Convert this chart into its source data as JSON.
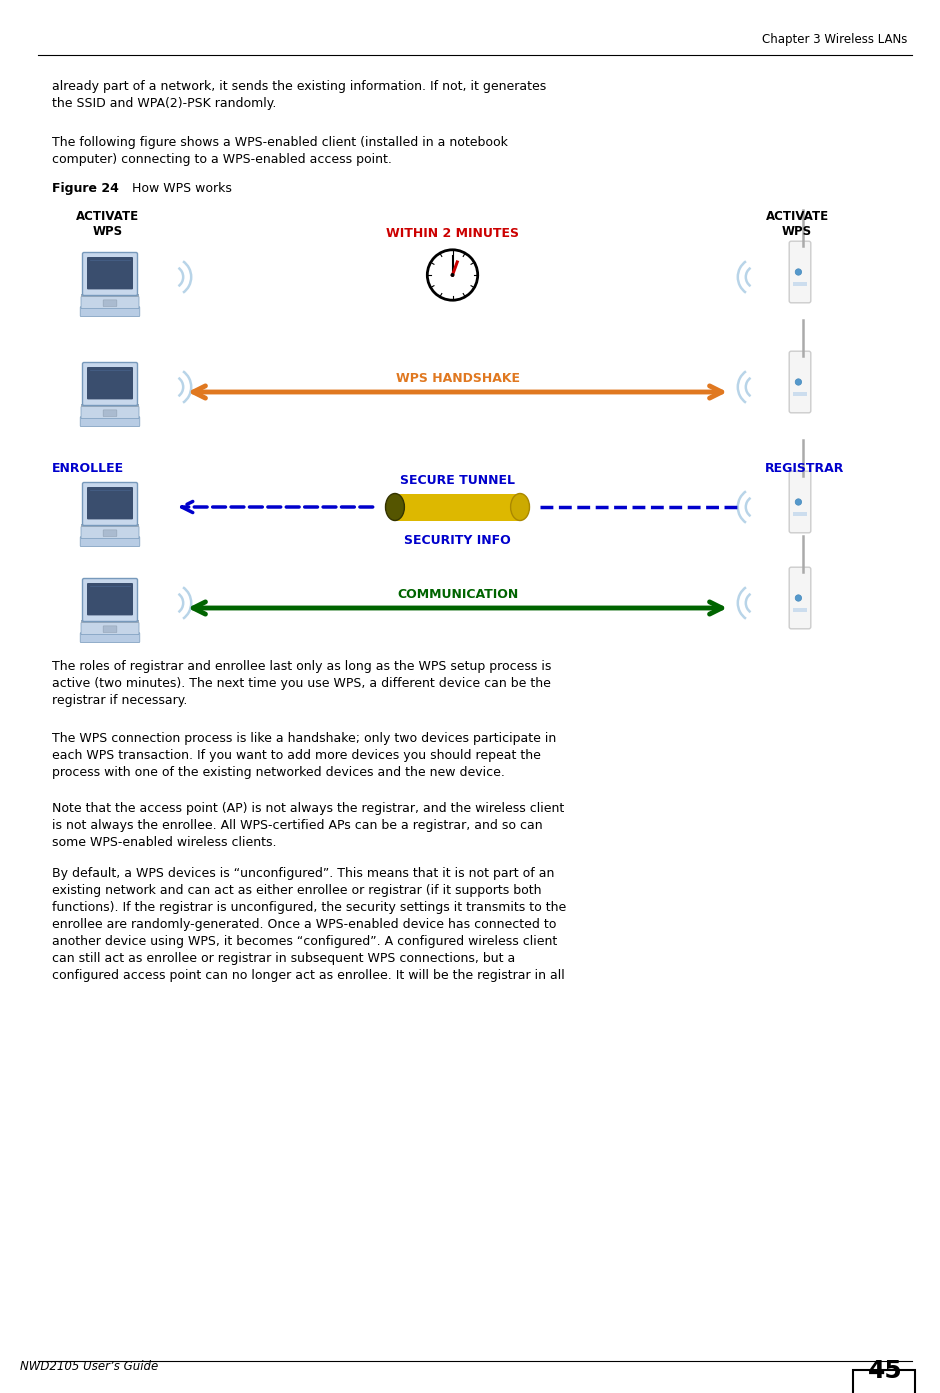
{
  "page_width": 9.4,
  "page_height": 13.93,
  "bg_color": "#ffffff",
  "header_text": "Chapter 3 Wireless LANs",
  "page_number": "45",
  "footer_left": "NWD2105 User’s Guide",
  "para1": "already part of a network, it sends the existing information. If not, it generates\nthe SSID and WPA(2)-PSK randomly.",
  "para2": "The following figure shows a WPS-enabled client (installed in a notebook\ncomputer) connecting to a WPS-enabled access point.",
  "figure_label_bold": "Figure 24",
  "figure_label_normal": "   How WPS works",
  "label_activate_wps": "ACTIVATE\nWPS",
  "label_within_2_min": "WITHIN 2 MINUTES",
  "label_wps_handshake": "WPS HANDSHAKE",
  "label_enrollee": "ENROLLEE",
  "label_registrar": "REGISTRAR",
  "label_secure_tunnel": "SECURE TUNNEL",
  "label_security_info": "SECURITY INFO",
  "label_communication": "COMMUNICATION",
  "color_red": "#cc0000",
  "color_orange": "#e07820",
  "color_blue": "#0000cc",
  "color_green": "#006400",
  "color_black": "#000000",
  "para3": "The roles of registrar and enrollee last only as long as the WPS setup process is\nactive (two minutes). The next time you use WPS, a different device can be the\nregistrar if necessary.",
  "para4": "The WPS connection process is like a handshake; only two devices participate in\neach WPS transaction. If you want to add more devices you should repeat the\nprocess with one of the existing networked devices and the new device.",
  "para5": "Note that the access point (AP) is not always the registrar, and the wireless client\nis not always the enrollee. All WPS-certified APs can be a registrar, and so can\nsome WPS-enabled wireless clients.",
  "para6": "By default, a WPS devices is “unconfigured”. This means that it is not part of an\nexisting network and can act as either enrollee or registrar (if it supports both\nfunctions). If the registrar is unconfigured, the security settings it transmits to the\nenrollee are randomly-generated. Once a WPS-enabled device has connected to\nanother device using WPS, it becomes “configured”. A configured wireless client\ncan still act as enrollee or registrar in subsequent WPS connections, but a\nconfigured access point can no longer act as enrollee. It will be the registrar in all"
}
